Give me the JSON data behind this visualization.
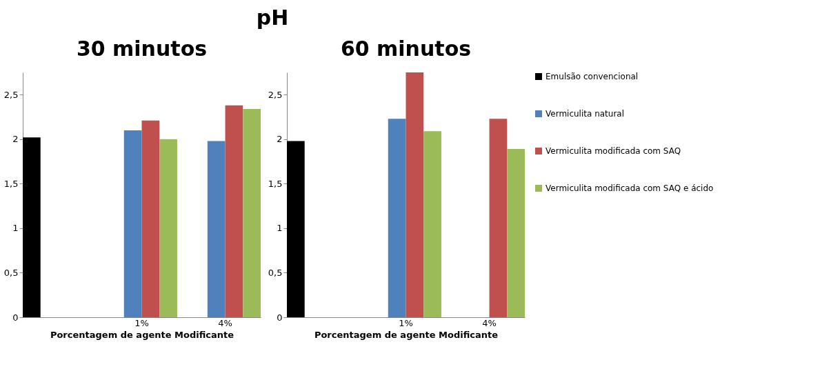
{
  "chart_data": [
    {
      "type": "bar",
      "title": "30 minutos",
      "annotations": [
        "pH"
      ],
      "xlabel": "Porcentagem de agente Modificante",
      "categories": [
        null,
        "1%",
        "4%"
      ],
      "series": [
        {
          "color": "#000000",
          "values": [
            2.02,
            null,
            null
          ]
        },
        {
          "color": "#4f81bd",
          "values": [
            null,
            2.1,
            1.98
          ]
        },
        {
          "color": "#c0504d",
          "values": [
            null,
            2.21,
            2.38
          ]
        },
        {
          "color": "#9bbb59",
          "values": [
            null,
            2.0,
            2.34
          ]
        }
      ],
      "ylim": [
        0,
        2.75
      ],
      "yticks": [
        0,
        {
          "value": 0.5,
          "label": "0,5"
        },
        1,
        {
          "value": 1.5,
          "label": "1,5"
        },
        2,
        {
          "value": 2.5,
          "label": "2,5"
        }
      ]
    },
    {
      "type": "bar",
      "title": "60 minutos",
      "xlabel": "Porcentagem de agente Modificante",
      "categories": [
        null,
        "1%",
        "4%"
      ],
      "series": [
        {
          "name": "Emulsão convencional",
          "color": "#000000",
          "values": [
            1.98,
            null,
            null
          ]
        },
        {
          "name": "Vermiculita natural",
          "color": "#4f81bd",
          "values": [
            null,
            2.23,
            null
          ]
        },
        {
          "name": "Vermiculita modificada com SAQ",
          "color": "#c0504d",
          "values": [
            null,
            2.75,
            2.23
          ]
        },
        {
          "name": "Vermiculita modificada com SAQ e ácido",
          "color": "#9bbb59",
          "values": [
            null,
            2.09,
            1.89
          ]
        }
      ],
      "ylim": [
        0,
        2.75
      ],
      "yticks": [
        0,
        {
          "value": 0.5,
          "label": "0,5"
        },
        1,
        {
          "value": 1.5,
          "label": "1,5"
        },
        2,
        {
          "value": 2.5,
          "label": "2,5"
        }
      ],
      "legend": "right"
    }
  ]
}
